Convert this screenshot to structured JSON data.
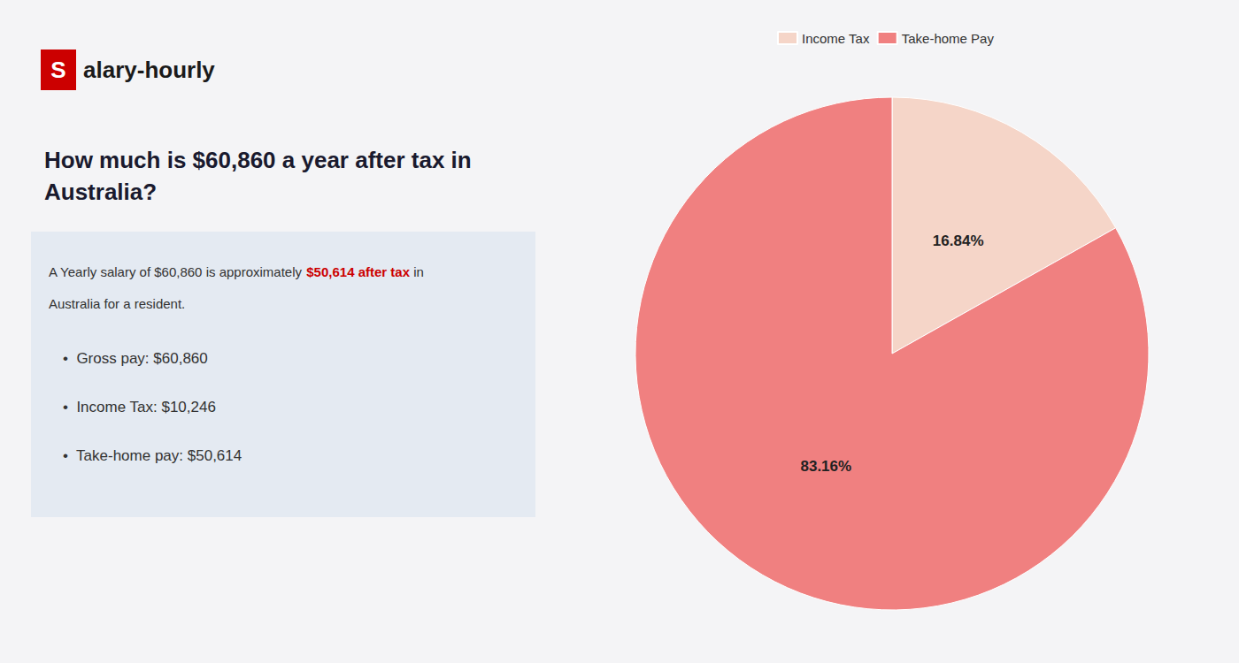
{
  "chart_data": {
    "type": "pie",
    "title": "How much is $60,860 a year after tax in\nAustralia?",
    "categories": [
      "Income Tax",
      "Take-home Pay"
    ],
    "values": [
      16.84,
      83.16
    ],
    "value_labels": [
      "16.84%",
      "83.16%"
    ],
    "colors": [
      "#f5d5c8",
      "#f08080"
    ],
    "data_labels": true,
    "legend": "top",
    "annotations": [
      {
        "text": "S",
        "color": "#cc0000"
      },
      {
        "text": "alary-hourly"
      },
      {
        "text": "A Yearly salary of $60,860 is approximately "
      },
      {
        "text": "$50,614 after tax",
        "color": "#cc0000"
      },
      {
        "text": " in"
      },
      {
        "text": "Australia for a resident."
      },
      {
        "text": "•  Gross pay: $60,860"
      },
      {
        "text": "•  Income Tax: $10,246"
      },
      {
        "text": "•  Take-home pay: $50,614"
      }
    ]
  }
}
